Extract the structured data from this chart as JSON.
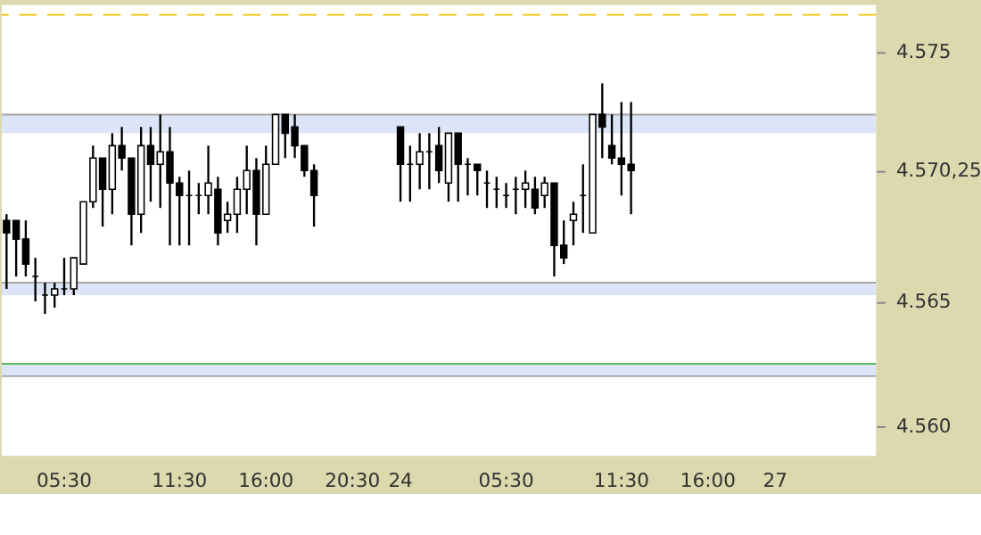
{
  "chart_data": {
    "type": "candlestick",
    "categories": [
      null,
      null,
      null,
      null,
      null,
      null,
      "05:30",
      null,
      null,
      null,
      null,
      null,
      null,
      null,
      null,
      null,
      null,
      null,
      "11:30",
      null,
      null,
      null,
      null,
      null,
      null,
      null,
      null,
      "16:00",
      null,
      null,
      null,
      null,
      null,
      null,
      null,
      null,
      "20:30",
      null,
      null,
      null,
      null,
      "24",
      null,
      null,
      null,
      null,
      null,
      null,
      null,
      null,
      null,
      null,
      "05:30",
      null,
      null,
      null,
      null,
      null,
      null,
      null,
      null,
      null,
      null,
      null,
      "11:30",
      null,
      null,
      null,
      null,
      null,
      null,
      null,
      null,
      "16:00",
      null,
      null,
      null,
      null,
      null,
      null,
      "27",
      null,
      null,
      null,
      null,
      null,
      null,
      null,
      null,
      null,
      null
    ],
    "ohlc": [
      [
        4568.25,
        4568.5,
        4565.5,
        4567.75
      ],
      [
        4568.25,
        4568.25,
        4566,
        4567.5
      ],
      [
        4567.5,
        4568.25,
        4566,
        4566.5
      ],
      [
        4566,
        4566.75,
        4565,
        4566
      ],
      [
        4565.25,
        4565.75,
        4564.5,
        4565.25
      ],
      [
        4565.25,
        4565.75,
        4564.75,
        4565.5
      ],
      [
        4565.5,
        4566.75,
        4565.25,
        4565.5
      ],
      [
        4565.5,
        4566.75,
        4565.25,
        4566.75
      ],
      [
        4566.5,
        4569,
        4566.5,
        4569
      ],
      [
        4569,
        4571.25,
        4568.75,
        4570.75
      ],
      [
        4570.75,
        4570.75,
        4568,
        4569.5
      ],
      [
        4569.5,
        4571.75,
        4568.5,
        4571.25
      ],
      [
        4571.25,
        4572,
        4570.25,
        4570.75
      ],
      [
        4570.75,
        4570.75,
        4567.25,
        4568.5
      ],
      [
        4568.5,
        4572,
        4567.75,
        4571.25
      ],
      [
        4571.25,
        4572,
        4569,
        4570.5
      ],
      [
        4570.5,
        4572.5,
        4568.75,
        4571
      ],
      [
        4571,
        4572,
        4567.25,
        4569.75
      ],
      [
        4569.75,
        4570,
        4567.25,
        4569.25
      ],
      [
        4569.25,
        4570.25,
        4567.25,
        4569.25
      ],
      [
        4569.25,
        4569.75,
        4568.5,
        4569.25
      ],
      [
        4569.25,
        4571.25,
        4568.5,
        4569.75
      ],
      [
        4569.5,
        4570,
        4567.25,
        4567.75
      ],
      [
        4568.25,
        4569,
        4567.75,
        4568.5
      ],
      [
        4568.5,
        4570,
        4567.75,
        4569.5
      ],
      [
        4569.5,
        4571.25,
        4568.5,
        4570.25
      ],
      [
        4570.25,
        4570.75,
        4567.25,
        4568.5
      ],
      [
        4568.5,
        4571.25,
        4568.5,
        4570.5
      ],
      [
        4570.5,
        4572.5,
        4570.5,
        4572.5
      ],
      [
        4572.5,
        4572.5,
        4570.75,
        4571.75
      ],
      [
        4572,
        4572.5,
        4570.75,
        4571.25
      ],
      [
        4571.25,
        4571.25,
        4570,
        4570.25
      ],
      [
        4570.25,
        4570.5,
        4568,
        4569.25
      ],
      null,
      null,
      null,
      null,
      null,
      null,
      null,
      null,
      [
        4572,
        4572,
        4569,
        4570.5
      ],
      [
        4570.5,
        4571.25,
        4569,
        4570.5
      ],
      [
        4570.5,
        4571.75,
        4569.5,
        4571
      ],
      [
        4571,
        4571.75,
        4569.5,
        4571
      ],
      [
        4571.25,
        4572,
        4569.75,
        4570.25
      ],
      [
        4569.75,
        4571.75,
        4569,
        4571.75
      ],
      [
        4571.75,
        4571.75,
        4569,
        4570.5
      ],
      [
        4570.5,
        4570.75,
        4569.25,
        4570.5
      ],
      [
        4570.5,
        4570.5,
        4569.25,
        4570.25
      ],
      [
        4569.75,
        4570.25,
        4568.75,
        4569.75
      ],
      [
        4569.5,
        4570,
        4568.75,
        4569.5
      ],
      [
        4569.25,
        4569.75,
        4568.75,
        4569.25
      ],
      [
        4569.5,
        4570,
        4568.5,
        4569.5
      ],
      [
        4569.5,
        4570.25,
        4568.75,
        4569.75
      ],
      [
        4569.5,
        4570,
        4568.5,
        4568.75
      ],
      [
        4569.25,
        4570,
        4568.75,
        4569.75
      ],
      [
        4569.75,
        4569.75,
        4566,
        4567.25
      ],
      [
        4567.25,
        4568.25,
        4566.5,
        4566.75
      ],
      [
        4568.25,
        4569,
        4567.25,
        4568.5
      ],
      [
        4569.25,
        4570.5,
        4567.75,
        4569.25
      ],
      [
        4567.75,
        4572.5,
        4567.75,
        4572.5
      ],
      [
        4572.5,
        4573.75,
        4570.75,
        4572
      ],
      [
        4571.25,
        4572.5,
        4570.5,
        4570.75
      ],
      [
        4570.75,
        4573,
        4569.25,
        4570.5
      ],
      [
        4570.5,
        4573,
        4568.5,
        4570.25
      ],
      null,
      null,
      null,
      null,
      null,
      null,
      null,
      null,
      null,
      null,
      null,
      null,
      null,
      null,
      null,
      null,
      null,
      null,
      null,
      null,
      null,
      null,
      null,
      null,
      null
    ],
    "color": "#000000",
    "ylim": [
      4558.8,
      4576.9
    ],
    "yticks": [
      {
        "value": 4560,
        "label": "4.560"
      },
      {
        "value": 4565,
        "label": "4.565"
      },
      {
        "value": 4570.25,
        "label": "4.570,25"
      },
      {
        "value": 4575,
        "label": "4.575"
      }
    ],
    "grid": false,
    "ref_lines": [
      {
        "axis": "y",
        "value": 4576.5,
        "color": "#f0c000",
        "line_style": "dashed"
      },
      {
        "axis": "y",
        "value": 4572.5,
        "color": "#a6a6a6"
      },
      {
        "axis": "y",
        "value": 4565.75,
        "color": "#a6a6a6"
      },
      {
        "axis": "y",
        "value": 4562.5,
        "color": "#5cb85c"
      },
      {
        "axis": "y",
        "value": 4562,
        "color": "#a6a6a6"
      }
    ],
    "bands": [
      {
        "axis": "y",
        "from": 4571.75,
        "to": 4572.5,
        "color": "#dce4f8"
      },
      {
        "axis": "y",
        "from": 4565.25,
        "to": 4565.75,
        "color": "#dce4f8"
      },
      {
        "axis": "y",
        "from": 4562,
        "to": 4562.5,
        "color": "#dce4f8"
      }
    ]
  }
}
